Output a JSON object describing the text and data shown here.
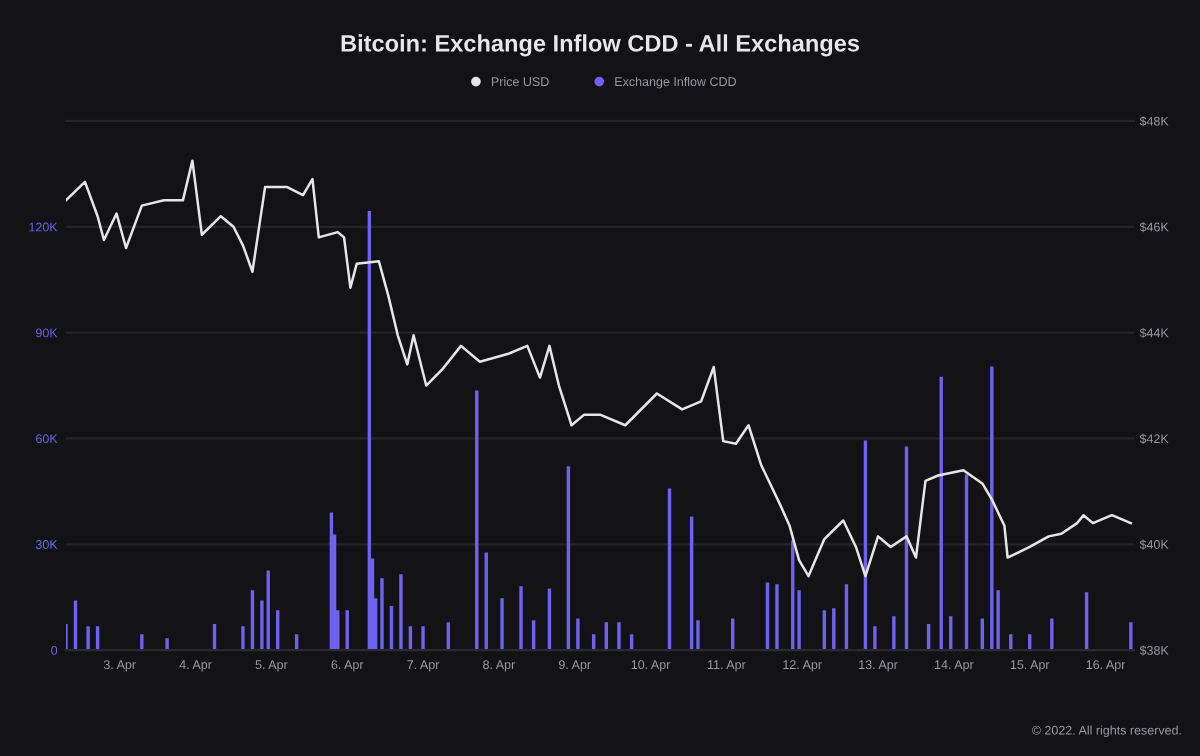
{
  "chart_data": {
    "type": "line",
    "title": "Bitcoin: Exchange Inflow CDD - All Exchanges",
    "xlim": [
      "2022-04-02T07:00",
      "2022-04-16T09:00"
    ],
    "xticks": [
      {
        "value": "2022-04-03",
        "label": "3. Apr"
      },
      {
        "value": "2022-04-04",
        "label": "4. Apr"
      },
      {
        "value": "2022-04-05",
        "label": "5. Apr"
      },
      {
        "value": "2022-04-06",
        "label": "6. Apr"
      },
      {
        "value": "2022-04-07",
        "label": "7. Apr"
      },
      {
        "value": "2022-04-08",
        "label": "8. Apr"
      },
      {
        "value": "2022-04-09",
        "label": "9. Apr"
      },
      {
        "value": "2022-04-10",
        "label": "10. Apr"
      },
      {
        "value": "2022-04-11",
        "label": "11. Apr"
      },
      {
        "value": "2022-04-12",
        "label": "12. Apr"
      },
      {
        "value": "2022-04-13",
        "label": "13. Apr"
      },
      {
        "value": "2022-04-14",
        "label": "14. Apr"
      },
      {
        "value": "2022-04-15",
        "label": "15. Apr"
      },
      {
        "value": "2022-04-16",
        "label": "16. Apr"
      }
    ],
    "ylim": [
      0,
      150000
    ],
    "yticks": [
      {
        "value": 0,
        "label": "0"
      },
      {
        "value": 30000,
        "label": "30K"
      },
      {
        "value": 60000,
        "label": "60K"
      },
      {
        "value": 90000,
        "label": "90K"
      },
      {
        "value": 120000,
        "label": "120K"
      }
    ],
    "y2lim": [
      38000,
      48000
    ],
    "y2ticks": [
      {
        "value": 38000,
        "label": "$38K"
      },
      {
        "value": 40000,
        "label": "$40K"
      },
      {
        "value": 42000,
        "label": "$42K"
      },
      {
        "value": 44000,
        "label": "$44K"
      },
      {
        "value": 46000,
        "label": "$46K"
      },
      {
        "value": 48000,
        "label": "$48K"
      }
    ],
    "grid": "y",
    "legend": "top",
    "marker": "none",
    "line_style": "solid",
    "annotations": [
      "© 2022. All rights reserved."
    ],
    "series": [
      {
        "name": "Price USD",
        "axis": "y2",
        "color": "#e6e6e6",
        "x": [
          "2022-04-02T07:00",
          "2022-04-02T13:00",
          "2022-04-02T17:00",
          "2022-04-02T19:00",
          "2022-04-02T23:00",
          "2022-04-03T02:00",
          "2022-04-03T07:00",
          "2022-04-03T14:00",
          "2022-04-03T20:00",
          "2022-04-03T23:00",
          "2022-04-04T02:00",
          "2022-04-04T08:00",
          "2022-04-04T12:00",
          "2022-04-04T15:00",
          "2022-04-04T18:00",
          "2022-04-04T22:00",
          "2022-04-05T05:00",
          "2022-04-05T10:00",
          "2022-04-05T13:00",
          "2022-04-05T15:00",
          "2022-04-05T21:00",
          "2022-04-05T23:00",
          "2022-04-06T01:00",
          "2022-04-06T03:00",
          "2022-04-06T10:00",
          "2022-04-06T13:00",
          "2022-04-06T16:00",
          "2022-04-06T19:00",
          "2022-04-06T21:00",
          "2022-04-07T01:00",
          "2022-04-07T06:00",
          "2022-04-07T12:00",
          "2022-04-07T18:00",
          "2022-04-08T03:00",
          "2022-04-08T09:00",
          "2022-04-08T13:00",
          "2022-04-08T16:00",
          "2022-04-08T19:00",
          "2022-04-08T23:00",
          "2022-04-09T03:00",
          "2022-04-09T08:00",
          "2022-04-09T16:00",
          "2022-04-10T02:00",
          "2022-04-10T10:00",
          "2022-04-10T16:00",
          "2022-04-10T20:00",
          "2022-04-10T23:00",
          "2022-04-11T03:00",
          "2022-04-11T07:00",
          "2022-04-11T11:00",
          "2022-04-11T17:00",
          "2022-04-11T20:00",
          "2022-04-11T23:00",
          "2022-04-12T02:00",
          "2022-04-12T07:00",
          "2022-04-12T13:00",
          "2022-04-12T17:00",
          "2022-04-12T20:00",
          "2022-04-13T00:00",
          "2022-04-13T04:00",
          "2022-04-13T09:00",
          "2022-04-13T12:00",
          "2022-04-13T15:00",
          "2022-04-13T19:00",
          "2022-04-14T03:00",
          "2022-04-14T09:00",
          "2022-04-14T12:00",
          "2022-04-14T16:00",
          "2022-04-14T17:00",
          "2022-04-15T00:00",
          "2022-04-15T06:00",
          "2022-04-15T10:00",
          "2022-04-15T15:00",
          "2022-04-15T17:00",
          "2022-04-15T20:00",
          "2022-04-16T02:00",
          "2022-04-16T08:00"
        ],
        "values": [
          46500,
          46850,
          46200,
          45750,
          46250,
          45600,
          46400,
          46500,
          46500,
          47250,
          45850,
          46200,
          46000,
          45650,
          45150,
          46750,
          46750,
          46600,
          46900,
          45800,
          45900,
          45800,
          44850,
          45300,
          45350,
          44700,
          43950,
          43400,
          43950,
          43000,
          43300,
          43750,
          43450,
          43600,
          43750,
          43150,
          43750,
          43000,
          42250,
          42450,
          42450,
          42250,
          42850,
          42550,
          42700,
          43350,
          41950,
          41900,
          42250,
          41500,
          40750,
          40350,
          39700,
          39400,
          40100,
          40450,
          39950,
          39400,
          40150,
          39950,
          40150,
          39750,
          41200,
          41300,
          41400,
          41150,
          40850,
          40350,
          39750,
          39950,
          40150,
          40200,
          40400,
          40550,
          40400,
          40550,
          40400
        ]
      },
      {
        "name": "Exchange Inflow CDD",
        "type": "bar",
        "axis": "y",
        "color": "#6e62f0",
        "x": [
          "2022-04-02T07:00",
          "2022-04-02T10:00",
          "2022-04-02T14:00",
          "2022-04-02T17:00",
          "2022-04-03T07:00",
          "2022-04-03T15:00",
          "2022-04-04T06:00",
          "2022-04-04T15:00",
          "2022-04-04T18:00",
          "2022-04-04T21:00",
          "2022-04-04T23:00",
          "2022-04-05T02:00",
          "2022-04-05T08:00",
          "2022-04-05T19:00",
          "2022-04-05T20:00",
          "2022-04-05T21:00",
          "2022-04-06T00:00",
          "2022-04-06T07:00",
          "2022-04-06T08:00",
          "2022-04-06T09:00",
          "2022-04-06T11:00",
          "2022-04-06T14:00",
          "2022-04-06T17:00",
          "2022-04-06T20:00",
          "2022-04-07T00:00",
          "2022-04-07T08:00",
          "2022-04-07T17:00",
          "2022-04-07T20:00",
          "2022-04-08T01:00",
          "2022-04-08T07:00",
          "2022-04-08T11:00",
          "2022-04-08T16:00",
          "2022-04-08T22:00",
          "2022-04-09T01:00",
          "2022-04-09T06:00",
          "2022-04-09T10:00",
          "2022-04-09T14:00",
          "2022-04-09T18:00",
          "2022-04-10T06:00",
          "2022-04-10T13:00",
          "2022-04-10T15:00",
          "2022-04-11T02:00",
          "2022-04-11T13:00",
          "2022-04-11T16:00",
          "2022-04-11T21:00",
          "2022-04-11T23:00",
          "2022-04-12T07:00",
          "2022-04-12T10:00",
          "2022-04-12T14:00",
          "2022-04-12T20:00",
          "2022-04-12T23:00",
          "2022-04-13T05:00",
          "2022-04-13T09:00",
          "2022-04-13T16:00",
          "2022-04-13T20:00",
          "2022-04-13T23:00",
          "2022-04-14T04:00",
          "2022-04-14T09:00",
          "2022-04-14T12:00",
          "2022-04-14T14:00",
          "2022-04-14T18:00",
          "2022-04-15T00:00",
          "2022-04-15T07:00",
          "2022-04-15T18:00",
          "2022-04-16T08:00"
        ],
        "values": [
          7400,
          14100,
          6800,
          6800,
          4500,
          3400,
          7400,
          6800,
          17000,
          14100,
          22600,
          11300,
          4500,
          39000,
          32800,
          11300,
          11300,
          124500,
          26000,
          14700,
          20400,
          12500,
          21500,
          6800,
          6800,
          7900,
          73600,
          27700,
          14700,
          18100,
          8500,
          17500,
          52100,
          9000,
          4500,
          7900,
          7900,
          4500,
          45800,
          37900,
          8500,
          9000,
          19200,
          18700,
          31100,
          17000,
          11300,
          11900,
          18700,
          59400,
          6800,
          9600,
          57700,
          7400,
          77500,
          9600,
          49800,
          9000,
          80400,
          17000,
          4500,
          4500,
          9000,
          16400,
          7900
        ]
      }
    ]
  }
}
